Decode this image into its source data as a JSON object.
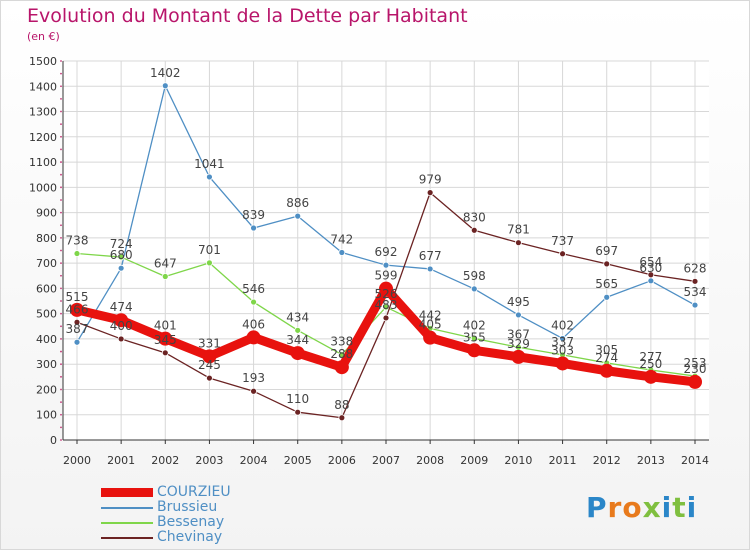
{
  "title": "Evolution du Montant de la Dette par Habitant",
  "unit_label": "(en €)",
  "logo_text": "Proxiti",
  "colors": {
    "title": "#b8156a",
    "axis": "#333333",
    "grid": "#d8d8d8"
  },
  "chart_data": {
    "type": "line",
    "title": "Evolution du Montant de la Dette par Habitant",
    "ylabel": "(en €)",
    "xlabel": "",
    "x": [
      "2000",
      "2001",
      "2002",
      "2003",
      "2004",
      "2005",
      "2006",
      "2007",
      "2008",
      "2009",
      "2010",
      "2011",
      "2012",
      "2013",
      "2014"
    ],
    "ylim": [
      0,
      1500
    ],
    "yticks": [
      0,
      100,
      200,
      300,
      400,
      500,
      600,
      700,
      800,
      900,
      1000,
      1100,
      1200,
      1300,
      1400,
      1500
    ],
    "grid": true,
    "legend_position": "bottom-left",
    "series": [
      {
        "name": "COURZIEU",
        "color": "#e8120e",
        "values": [
          515,
          474,
          401,
          331,
          406,
          344,
          288,
          599,
          405,
          355,
          329,
          303,
          274,
          250,
          230
        ]
      },
      {
        "name": "Brussieu",
        "color": "#4f8fc4",
        "values": [
          387,
          680,
          1402,
          1041,
          839,
          886,
          742,
          692,
          677,
          598,
          495,
          402,
          565,
          630,
          534
        ]
      },
      {
        "name": "Bessenay",
        "color": "#7fd64a",
        "values": [
          738,
          724,
          647,
          701,
          546,
          434,
          338,
          526,
          442,
          402,
          367,
          337,
          305,
          277,
          253
        ]
      },
      {
        "name": "Chevinay",
        "color": "#6b2323",
        "values": [
          466,
          400,
          345,
          245,
          193,
          110,
          88,
          483,
          979,
          830,
          781,
          737,
          697,
          654,
          628
        ]
      }
    ]
  }
}
